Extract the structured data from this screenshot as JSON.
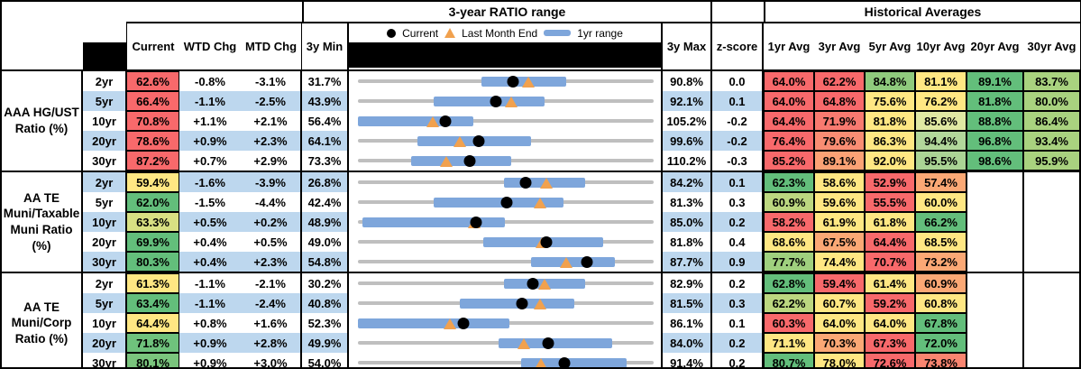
{
  "header": {
    "chart_section_title": "3-year RATIO range",
    "hist_section_title": "Historical Averages",
    "columns": {
      "current": "Current",
      "wtd": "WTD Chg",
      "mtd": "MTD Chg",
      "min": "3y Min",
      "max": "3y Max",
      "z": "z-score"
    },
    "hist_columns": [
      "1yr Avg",
      "3yr Avg",
      "5yr Avg",
      "10yr Avg",
      "20yr Avg",
      "30yr Avg"
    ],
    "legend": {
      "current": "Current",
      "last_month": "Last Month End",
      "range": "1yr range"
    }
  },
  "colors": {
    "stripe": "#BDD7EE",
    "range_bar": "#7EA6DB",
    "range_line": "#BFBFBF",
    "current_dot": "#000000",
    "last_month_triangle": "#F1A14E",
    "heat_red": "#F8696B",
    "heat_orange": "#FBA875",
    "heat_yellow": "#FFE783",
    "heat_lightgreen": "#A9D27F",
    "heat_green": "#63BE7B"
  },
  "chart_data": {
    "type": "dot_range_table",
    "x_unit": "percent",
    "description": "Each row: gray line = 3y range (3y Min to 3y Max), blue bar = 1yr range, black dot = Current, orange triangle = Last Month End",
    "groups": [
      {
        "label_lines": [
          "AAA HG/UST",
          "Ratio (%)"
        ],
        "rows": [
          {
            "tenor": "2yr",
            "current": "62.6%",
            "cur_color": "#F8696B",
            "wtd": "-0.8%",
            "mtd": "-3.1%",
            "min": "31.7%",
            "max": "90.8%",
            "z": "0.0",
            "range3y": [
              31.7,
              90.8
            ],
            "range1y": [
              56.4,
              73.4
            ],
            "cur_val": 62.6,
            "lm_val": 65.7,
            "avgs": [
              [
                "64.0%",
                "#F8696B"
              ],
              [
                "62.2%",
                "#F8696B"
              ],
              [
                "84.8%",
                "#8FCA7D"
              ],
              [
                "81.1%",
                "#FFE783"
              ],
              [
                "89.1%",
                "#63BE7B"
              ],
              [
                "83.7%",
                "#A9D27F"
              ]
            ]
          },
          {
            "tenor": "5yr",
            "current": "66.4%",
            "cur_color": "#F8696B",
            "wtd": "-1.1%",
            "mtd": "-2.5%",
            "min": "43.9%",
            "max": "92.1%",
            "z": "0.1",
            "range3y": [
              43.9,
              92.1
            ],
            "range1y": [
              56.2,
              74.3
            ],
            "cur_val": 66.4,
            "lm_val": 68.9,
            "avgs": [
              [
                "64.0%",
                "#F8696B"
              ],
              [
                "64.8%",
                "#F8696B"
              ],
              [
                "75.6%",
                "#FFE783"
              ],
              [
                "76.2%",
                "#FFE783"
              ],
              [
                "81.8%",
                "#63BE7B"
              ],
              [
                "80.0%",
                "#A9D27F"
              ]
            ]
          },
          {
            "tenor": "10yr",
            "current": "70.8%",
            "cur_color": "#F8696B",
            "wtd": "+1.1%",
            "mtd": "+2.1%",
            "min": "56.4%",
            "max": "105.2%",
            "z": "-0.2",
            "range3y": [
              56.4,
              105.2
            ],
            "range1y": [
              56.4,
              75.5
            ],
            "cur_val": 70.8,
            "lm_val": 68.7,
            "avgs": [
              [
                "64.4%",
                "#F8696B"
              ],
              [
                "71.9%",
                "#F87A70"
              ],
              [
                "81.8%",
                "#FFE783"
              ],
              [
                "85.6%",
                "#E0E8A3"
              ],
              [
                "88.8%",
                "#63BE7B"
              ],
              [
                "86.4%",
                "#A9D27F"
              ]
            ]
          },
          {
            "tenor": "20yr",
            "current": "78.6%",
            "cur_color": "#F8696B",
            "wtd": "+0.9%",
            "mtd": "+2.3%",
            "min": "64.1%",
            "max": "99.6%",
            "z": "-0.2",
            "range3y": [
              64.1,
              99.6
            ],
            "range1y": [
              71.2,
              84.9
            ],
            "cur_val": 78.6,
            "lm_val": 76.3,
            "avgs": [
              [
                "76.4%",
                "#F8696B"
              ],
              [
                "79.6%",
                "#F98D73"
              ],
              [
                "86.3%",
                "#FFE783"
              ],
              [
                "94.4%",
                "#B2D79B"
              ],
              [
                "96.8%",
                "#63BE7B"
              ],
              [
                "93.4%",
                "#A9D27F"
              ]
            ]
          },
          {
            "tenor": "30yr",
            "current": "87.2%",
            "cur_color": "#F8696B",
            "wtd": "+0.7%",
            "mtd": "+2.9%",
            "min": "73.3%",
            "max": "110.2%",
            "z": "-0.3",
            "range3y": [
              73.3,
              110.2
            ],
            "range1y": [
              79.9,
              92.4
            ],
            "cur_val": 87.2,
            "lm_val": 84.3,
            "avgs": [
              [
                "85.2%",
                "#F8696B"
              ],
              [
                "89.1%",
                "#FBA275"
              ],
              [
                "92.0%",
                "#FFE783"
              ],
              [
                "95.5%",
                "#ABD495"
              ],
              [
                "98.6%",
                "#63BE7B"
              ],
              [
                "95.9%",
                "#A9D27F"
              ]
            ]
          }
        ]
      },
      {
        "label_lines": [
          "AA TE",
          "Muni/Taxable",
          "Muni Ratio",
          "(%)"
        ],
        "rows": [
          {
            "tenor": "2yr",
            "current": "59.4%",
            "cur_color": "#FFE783",
            "wtd": "-1.6%",
            "mtd": "-3.9%",
            "min": "26.8%",
            "max": "84.2%",
            "z": "0.1",
            "range3y": [
              26.8,
              84.2
            ],
            "range1y": [
              55.1,
              70.9
            ],
            "cur_val": 59.4,
            "lm_val": 63.3,
            "avgs": [
              [
                "62.3%",
                "#63BE7B"
              ],
              [
                "58.6%",
                "#FFE783"
              ],
              [
                "52.9%",
                "#F8696B"
              ],
              [
                "57.4%",
                "#FBA875"
              ],
              [
                "",
                ""
              ],
              [
                "",
                ""
              ]
            ]
          },
          {
            "tenor": "5yr",
            "current": "62.0%",
            "cur_color": "#63BE7B",
            "wtd": "-1.5%",
            "mtd": "-4.4%",
            "min": "42.4%",
            "max": "81.3%",
            "z": "0.3",
            "range3y": [
              42.4,
              81.3
            ],
            "range1y": [
              52.4,
              69.4
            ],
            "cur_val": 62.0,
            "lm_val": 66.4,
            "avgs": [
              [
                "60.9%",
                "#BCD780"
              ],
              [
                "59.6%",
                "#FFE783"
              ],
              [
                "55.5%",
                "#F8696B"
              ],
              [
                "60.0%",
                "#FFE783"
              ],
              [
                "",
                ""
              ],
              [
                "",
                ""
              ]
            ]
          },
          {
            "tenor": "10yr",
            "current": "63.3%",
            "cur_color": "#D8E083",
            "wtd": "+0.5%",
            "mtd": "+0.2%",
            "min": "48.9%",
            "max": "85.0%",
            "z": "0.2",
            "range3y": [
              48.9,
              85.0
            ],
            "range1y": [
              49.4,
              66.8
            ],
            "cur_val": 63.3,
            "lm_val": 63.1,
            "avgs": [
              [
                "58.2%",
                "#F8696B"
              ],
              [
                "61.9%",
                "#FFE783"
              ],
              [
                "61.8%",
                "#FFE783"
              ],
              [
                "66.2%",
                "#63BE7B"
              ],
              [
                "",
                ""
              ],
              [
                "",
                ""
              ]
            ]
          },
          {
            "tenor": "20yr",
            "current": "69.9%",
            "cur_color": "#63BE7B",
            "wtd": "+0.4%",
            "mtd": "+0.5%",
            "min": "49.0%",
            "max": "81.8%",
            "z": "0.4",
            "range3y": [
              49.0,
              81.8
            ],
            "range1y": [
              62.9,
              76.2
            ],
            "cur_val": 69.9,
            "lm_val": 69.4,
            "avgs": [
              [
                "68.6%",
                "#FFE783"
              ],
              [
                "67.5%",
                "#FBA875"
              ],
              [
                "64.4%",
                "#F8696B"
              ],
              [
                "68.5%",
                "#FFE783"
              ],
              [
                "",
                ""
              ],
              [
                "",
                ""
              ]
            ]
          },
          {
            "tenor": "30yr",
            "current": "80.3%",
            "cur_color": "#63BE7B",
            "wtd": "+0.4%",
            "mtd": "+2.3%",
            "min": "54.8%",
            "max": "87.7%",
            "z": "0.9",
            "range3y": [
              54.8,
              87.7
            ],
            "range1y": [
              74.1,
              83.4
            ],
            "cur_val": 80.3,
            "lm_val": 78.0,
            "avgs": [
              [
                "77.7%",
                "#9FD07E"
              ],
              [
                "74.4%",
                "#FFE783"
              ],
              [
                "70.7%",
                "#F8696B"
              ],
              [
                "73.2%",
                "#FBA875"
              ],
              [
                "",
                ""
              ],
              [
                "",
                ""
              ]
            ]
          }
        ]
      },
      {
        "label_lines": [
          "AA TE",
          "Muni/Corp",
          "Ratio (%)"
        ],
        "rows": [
          {
            "tenor": "2yr",
            "current": "61.3%",
            "cur_color": "#FFE783",
            "wtd": "-1.1%",
            "mtd": "-2.1%",
            "min": "30.2%",
            "max": "82.9%",
            "z": "0.2",
            "range3y": [
              30.2,
              82.9
            ],
            "range1y": [
              56.3,
              70.7
            ],
            "cur_val": 61.3,
            "lm_val": 63.4,
            "avgs": [
              [
                "62.8%",
                "#63BE7B"
              ],
              [
                "59.4%",
                "#F8696B"
              ],
              [
                "61.4%",
                "#FFE783"
              ],
              [
                "60.9%",
                "#FBA875"
              ],
              [
                "",
                ""
              ],
              [
                "",
                ""
              ]
            ]
          },
          {
            "tenor": "5yr",
            "current": "63.4%",
            "cur_color": "#63BE7B",
            "wtd": "-1.1%",
            "mtd": "-2.4%",
            "min": "40.8%",
            "max": "81.5%",
            "z": "0.3",
            "range3y": [
              40.8,
              81.5
            ],
            "range1y": [
              54.8,
              70.6
            ],
            "cur_val": 63.4,
            "lm_val": 65.8,
            "avgs": [
              [
                "62.2%",
                "#BCD780"
              ],
              [
                "60.7%",
                "#FFE783"
              ],
              [
                "59.2%",
                "#F8696B"
              ],
              [
                "60.8%",
                "#FFE783"
              ],
              [
                "",
                ""
              ],
              [
                "",
                ""
              ]
            ]
          },
          {
            "tenor": "10yr",
            "current": "64.4%",
            "cur_color": "#FFE783",
            "wtd": "+0.8%",
            "mtd": "+1.6%",
            "min": "52.3%",
            "max": "86.1%",
            "z": "0.1",
            "range3y": [
              52.3,
              86.1
            ],
            "range1y": [
              52.3,
              69.6
            ],
            "cur_val": 64.4,
            "lm_val": 62.8,
            "avgs": [
              [
                "60.3%",
                "#F8696B"
              ],
              [
                "64.0%",
                "#FFE783"
              ],
              [
                "64.0%",
                "#FFE783"
              ],
              [
                "67.8%",
                "#63BE7B"
              ],
              [
                "",
                ""
              ],
              [
                "",
                ""
              ]
            ]
          },
          {
            "tenor": "20yr",
            "current": "71.8%",
            "cur_color": "#6FC27C",
            "wtd": "+0.9%",
            "mtd": "+2.8%",
            "min": "49.9%",
            "max": "84.0%",
            "z": "0.2",
            "range3y": [
              49.9,
              84.0
            ],
            "range1y": [
              66.1,
              79.2
            ],
            "cur_val": 71.8,
            "lm_val": 69.0,
            "avgs": [
              [
                "71.1%",
                "#FFE783"
              ],
              [
                "70.3%",
                "#FBA875"
              ],
              [
                "67.3%",
                "#F8696B"
              ],
              [
                "72.0%",
                "#63BE7B"
              ],
              [
                "",
                ""
              ],
              [
                "",
                ""
              ]
            ]
          },
          {
            "tenor": "30yr",
            "current": "80.1%",
            "cur_color": "#7AC57D",
            "wtd": "+0.9%",
            "mtd": "+3.0%",
            "min": "54.0%",
            "max": "91.4%",
            "z": "0.2",
            "range3y": [
              54.0,
              91.4
            ],
            "range1y": [
              74.6,
              88.0
            ],
            "cur_val": 80.1,
            "lm_val": 77.1,
            "avgs": [
              [
                "80.7%",
                "#63BE7B"
              ],
              [
                "78.0%",
                "#FFE783"
              ],
              [
                "72.6%",
                "#F8696B"
              ],
              [
                "73.8%",
                "#F98570"
              ],
              [
                "",
                ""
              ],
              [
                "",
                ""
              ]
            ]
          }
        ]
      }
    ]
  }
}
